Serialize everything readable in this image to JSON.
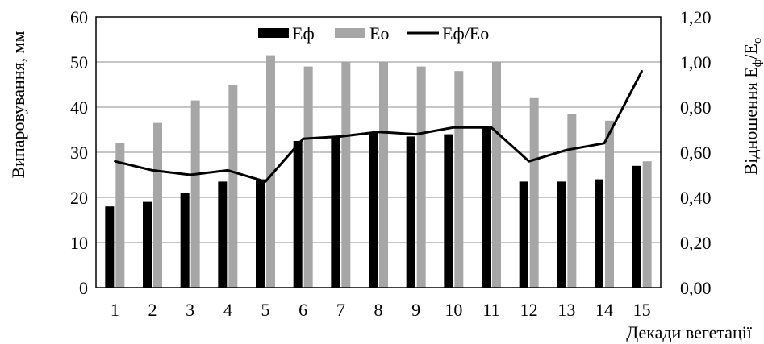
{
  "chart_data": {
    "type": "bar",
    "categories": [
      "1",
      "2",
      "3",
      "4",
      "5",
      "6",
      "7",
      "8",
      "9",
      "10",
      "11",
      "12",
      "13",
      "14",
      "15"
    ],
    "series": [
      {
        "name": "Еф",
        "type": "bar",
        "axis": "left",
        "color": "#000000",
        "values": [
          18,
          19,
          21,
          23.5,
          24,
          32.5,
          33.5,
          34.5,
          33.5,
          34,
          35.5,
          23.5,
          23.5,
          24,
          27
        ]
      },
      {
        "name": "Ео",
        "type": "bar",
        "axis": "left",
        "color": "#a6a6a6",
        "values": [
          32,
          36.5,
          41.5,
          45,
          51.5,
          49,
          50,
          50,
          49,
          48,
          50,
          42,
          38.5,
          37,
          28
        ]
      },
      {
        "name": "Еф/Ео",
        "type": "line",
        "axis": "right",
        "color": "#000000",
        "values": [
          0.56,
          0.52,
          0.5,
          0.52,
          0.47,
          0.66,
          0.67,
          0.69,
          0.68,
          0.71,
          0.71,
          0.56,
          0.61,
          0.64,
          0.96
        ]
      }
    ],
    "ylabel": "Випаровування,  мм",
    "ylabel_right": "Відношення Еф/Ео",
    "ylabel_right_parts": {
      "base": "Відношення  E",
      "sub1": "ф",
      "mid": "/E",
      "sub2": "o"
    },
    "xlabel": "Декади вегетації",
    "ylim": [
      0,
      60
    ],
    "ylim_right": [
      0,
      1.2
    ],
    "yticks": [
      "0",
      "10",
      "20",
      "30",
      "40",
      "50",
      "60"
    ],
    "yticks_right": [
      "0,00",
      "0,20",
      "0,40",
      "0,60",
      "0,80",
      "1,00",
      "1,20"
    ],
    "grid": true,
    "legend": {
      "placement": "top-center"
    }
  }
}
